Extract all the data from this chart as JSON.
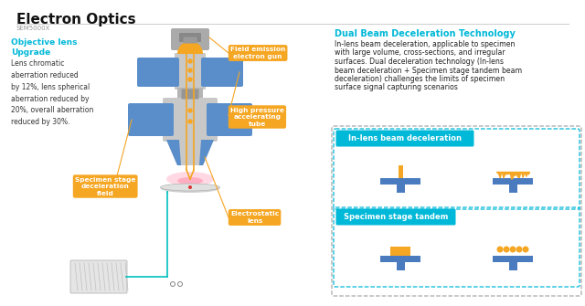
{
  "title": "Electron Optics",
  "subtitle": "SEM5000X",
  "bg_color": "#ffffff",
  "cyan_color": "#00b8d8",
  "orange_color": "#f5a623",
  "blue_color": "#4a7bbf",
  "obj_lens_title": "Objective lens\nUpgrade",
  "obj_lens_text": "Lens chromatic\naberration reduced\nby 12%, lens spherical\naberration reduced by\n20%, overall aberration\nreduced by 30%.",
  "label_field_emission": "Field emission\nelectron gun",
  "label_high_pressure": "High pressure\naccelerating\ntube",
  "label_specimen": "Specimen stage\ndeceleration\nfield",
  "label_electrostatic": "Electrostatic\nlens",
  "right_title": "Dual Beam Deceleration Technology",
  "right_text1": "In-lens beam deceleration, applicable to specimen",
  "right_text2": "with large volume, cross-sections, and irregular",
  "right_text3": "surfaces. Dual deceleration technology (In-lens",
  "right_text4": "beam deceleration + Specimen stage tandem beam",
  "right_text5": "deceleration) challenges the limits of specimen",
  "right_text6": "surface signal capturing scenarios",
  "label_in_lens": "In-lens beam deceleration",
  "label_specimen_tandem": "Specimen stage tandem"
}
